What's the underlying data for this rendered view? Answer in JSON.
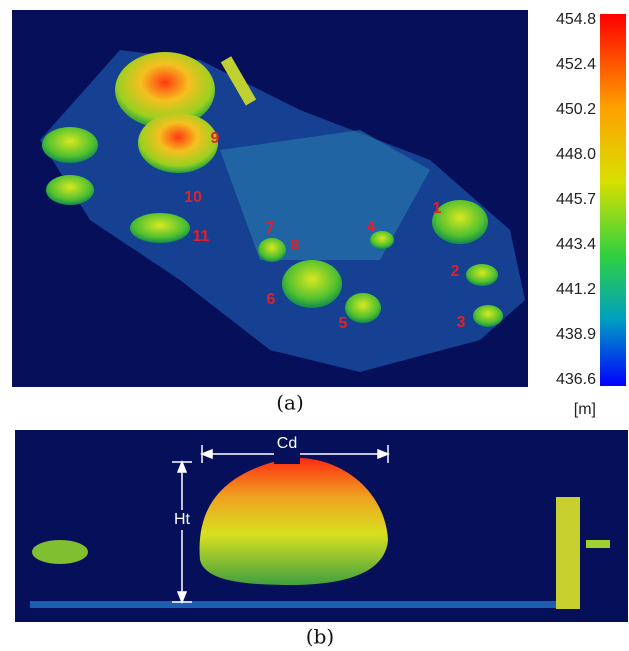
{
  "panel_a": {
    "labels": [
      "1",
      "2",
      "3",
      "4",
      "5",
      "6",
      "7",
      "8",
      "9",
      "10",
      "11"
    ],
    "caption": "(a)"
  },
  "colorbar": {
    "ticks": [
      "454.8",
      "452.4",
      "450.2",
      "448.0",
      "445.7",
      "443.4",
      "441.2",
      "438.9",
      "436.6"
    ],
    "unit": "[m]"
  },
  "panel_b": {
    "width_label": "Cd",
    "height_label": "Ht",
    "caption": "(b)"
  }
}
